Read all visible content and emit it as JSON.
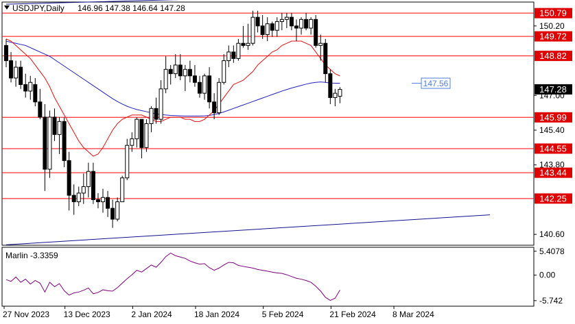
{
  "header": {
    "symbol": "USDJPY,Daily",
    "ohlc": "146.96 147.38 146.64 147.28"
  },
  "price_labels": [
    {
      "value": 150.79,
      "text": "150.79",
      "style": "red"
    },
    {
      "value": 150.2,
      "text": "150.20",
      "style": "plain"
    },
    {
      "value": 149.72,
      "text": "149.72",
      "style": "red"
    },
    {
      "value": 148.82,
      "text": "148.82",
      "style": "red"
    },
    {
      "value": 147.28,
      "text": "147.28",
      "style": "black"
    },
    {
      "value": 147.0,
      "text": "147.00",
      "style": "plain"
    },
    {
      "value": 145.99,
      "text": "145.99",
      "style": "red"
    },
    {
      "value": 145.4,
      "text": "145.40",
      "style": "plain"
    },
    {
      "value": 144.55,
      "text": "144.55",
      "style": "red"
    },
    {
      "value": 143.8,
      "text": "143.80",
      "style": "plain"
    },
    {
      "value": 143.44,
      "text": "143.44",
      "style": "red"
    },
    {
      "value": 142.25,
      "text": "142.25",
      "style": "red"
    },
    {
      "value": 140.6,
      "text": "140.60",
      "style": "plain"
    }
  ],
  "annotation": {
    "text": "147.56",
    "value": 147.56
  },
  "date_labels": [
    "27 Nov 2023",
    "13 Dec 2023",
    "2 Jan 2024",
    "18 Jan 2024",
    "5 Feb 2024",
    "21 Feb 2024",
    "8 Mar 2024"
  ],
  "oscillator": {
    "label": "Marlin -3.3359",
    "ticks": [
      {
        "value": 5.4078,
        "text": "5.4078"
      },
      {
        "value": 0.0,
        "text": "0.00"
      },
      {
        "value": -5.742,
        "text": "-5.742"
      }
    ]
  },
  "colors": {
    "bull": "#ffffff",
    "bear": "#000000",
    "level": "#ff0000",
    "ma_fast": "#e01010",
    "ma_slow": "#2020c0",
    "osc": "#800080",
    "label_red": "#e00000",
    "annot": "#4a7fe0"
  },
  "chart_data": {
    "type": "candlestick",
    "series_name": "USDJPY,Daily",
    "ylim": [
      140.1,
      151.3
    ],
    "horizontal_levels": [
      150.79,
      149.72,
      148.82,
      145.99,
      144.55,
      143.44,
      142.25
    ],
    "candles": [
      [
        149.3,
        149.6,
        148.3,
        148.6
      ],
      [
        148.6,
        149.0,
        147.6,
        147.8
      ],
      [
        147.8,
        148.6,
        147.4,
        148.3
      ],
      [
        148.3,
        148.6,
        147.3,
        147.5
      ],
      [
        147.5,
        148.0,
        146.9,
        147.2
      ],
      [
        147.2,
        147.9,
        146.8,
        147.6
      ],
      [
        147.5,
        147.8,
        146.5,
        146.7
      ],
      [
        146.7,
        147.3,
        145.9,
        146.0
      ],
      [
        146.0,
        146.6,
        142.6,
        143.6
      ],
      [
        143.6,
        146.3,
        143.2,
        146.0
      ],
      [
        146.0,
        146.4,
        144.9,
        145.2
      ],
      [
        145.2,
        146.0,
        144.3,
        145.8
      ],
      [
        145.8,
        146.0,
        143.7,
        144.0
      ],
      [
        144.0,
        144.4,
        141.7,
        142.4
      ],
      [
        142.4,
        142.9,
        141.5,
        142.1
      ],
      [
        142.1,
        142.8,
        141.9,
        142.5
      ],
      [
        142.5,
        143.4,
        142.0,
        142.8
      ],
      [
        142.8,
        143.9,
        142.3,
        143.5
      ],
      [
        143.5,
        143.9,
        142.0,
        142.2
      ],
      [
        142.2,
        142.5,
        141.8,
        142.1
      ],
      [
        142.1,
        142.7,
        141.6,
        142.3
      ],
      [
        142.3,
        142.6,
        141.4,
        141.8
      ],
      [
        141.8,
        142.2,
        140.9,
        141.3
      ],
      [
        141.3,
        142.3,
        141.2,
        142.1
      ],
      [
        142.1,
        143.3,
        142.1,
        143.2
      ],
      [
        143.2,
        145.0,
        143.1,
        144.7
      ],
      [
        144.7,
        145.3,
        144.4,
        145.0
      ],
      [
        145.0,
        146.0,
        144.6,
        145.9
      ],
      [
        145.9,
        145.9,
        144.1,
        144.6
      ],
      [
        144.6,
        145.9,
        144.4,
        145.7
      ],
      [
        145.7,
        146.5,
        145.3,
        146.4
      ],
      [
        146.4,
        146.9,
        145.7,
        145.9
      ],
      [
        145.9,
        147.7,
        145.7,
        147.3
      ],
      [
        147.3,
        148.8,
        147.1,
        148.2
      ],
      [
        148.2,
        148.4,
        147.5,
        148.0
      ],
      [
        148.0,
        148.9,
        147.8,
        148.4
      ],
      [
        148.4,
        148.9,
        147.7,
        147.9
      ],
      [
        147.9,
        148.4,
        147.2,
        148.2
      ],
      [
        148.2,
        148.6,
        147.6,
        147.9
      ],
      [
        147.9,
        148.4,
        147.4,
        147.6
      ],
      [
        147.6,
        147.9,
        146.9,
        147.1
      ],
      [
        147.1,
        148.0,
        146.8,
        147.9
      ],
      [
        147.9,
        148.3,
        146.4,
        146.7
      ],
      [
        146.7,
        147.1,
        145.9,
        146.2
      ],
      [
        146.2,
        147.8,
        146.1,
        147.6
      ],
      [
        147.6,
        148.9,
        147.5,
        148.6
      ],
      [
        148.6,
        149.3,
        148.3,
        149.0
      ],
      [
        149.0,
        149.3,
        148.5,
        148.7
      ],
      [
        148.7,
        149.6,
        148.6,
        149.4
      ],
      [
        149.4,
        150.2,
        149.2,
        149.3
      ],
      [
        149.3,
        150.3,
        149.1,
        149.4
      ],
      [
        149.4,
        150.9,
        149.3,
        150.6
      ],
      [
        150.6,
        150.9,
        149.9,
        150.2
      ],
      [
        150.2,
        150.7,
        149.6,
        149.8
      ],
      [
        149.8,
        150.6,
        149.5,
        150.3
      ],
      [
        150.3,
        150.4,
        149.7,
        150.0
      ],
      [
        150.0,
        150.6,
        149.7,
        150.4
      ],
      [
        150.4,
        150.8,
        150.0,
        150.5
      ],
      [
        150.5,
        150.8,
        150.1,
        150.6
      ],
      [
        150.6,
        150.8,
        150.0,
        150.2
      ],
      [
        150.2,
        150.5,
        149.5,
        150.1
      ],
      [
        150.1,
        150.6,
        149.8,
        150.5
      ],
      [
        150.5,
        150.8,
        150.0,
        150.1
      ],
      [
        150.1,
        150.6,
        149.8,
        150.5
      ],
      [
        150.5,
        150.7,
        149.2,
        149.3
      ],
      [
        149.3,
        149.8,
        148.6,
        149.4
      ],
      [
        149.4,
        149.6,
        147.6,
        148.0
      ],
      [
        148.0,
        148.2,
        146.6,
        146.9
      ],
      [
        146.9,
        147.3,
        146.5,
        147.1
      ],
      [
        146.96,
        147.38,
        146.64,
        147.28
      ]
    ],
    "red_ma": [
      149.6,
      149.5,
      149.3,
      149.1,
      148.9,
      148.7,
      148.4,
      148.1,
      147.8,
      147.4,
      146.9,
      146.5,
      146.1,
      145.7,
      145.3,
      144.9,
      144.6,
      144.4,
      144.2,
      144.3,
      144.6,
      145.0,
      145.4,
      145.7,
      145.9,
      146.0,
      146.1,
      146.1,
      146.1,
      146.0,
      145.9,
      145.8,
      145.8,
      145.9,
      146.0,
      146.0,
      146.0,
      145.9,
      145.9,
      145.8,
      145.8,
      145.9,
      146.1,
      146.3,
      146.6,
      146.9,
      147.2,
      147.5,
      147.6,
      147.7,
      147.9,
      148.1,
      148.4,
      148.6,
      148.8,
      149.0,
      149.1,
      149.3,
      149.4,
      149.5,
      149.5,
      149.5,
      149.4,
      149.3,
      149.0,
      148.7,
      148.4,
      148.2,
      148.0,
      147.9
    ],
    "blue_ma": [
      149.5,
      149.45,
      149.4,
      149.35,
      149.3,
      149.2,
      149.1,
      149.0,
      148.9,
      148.8,
      148.65,
      148.5,
      148.35,
      148.2,
      148.05,
      147.9,
      147.75,
      147.6,
      147.45,
      147.3,
      147.15,
      147.0,
      146.85,
      146.72,
      146.6,
      146.5,
      146.42,
      146.35,
      146.3,
      146.25,
      146.2,
      146.15,
      146.12,
      146.1,
      146.08,
      146.07,
      146.06,
      146.05,
      146.05,
      146.05,
      146.05,
      146.06,
      146.08,
      146.12,
      146.17,
      146.24,
      146.32,
      146.4,
      146.48,
      146.56,
      146.64,
      146.72,
      146.8,
      146.88,
      146.96,
      147.04,
      147.12,
      147.2,
      147.27,
      147.34,
      147.4,
      147.46,
      147.52,
      147.57,
      147.6,
      147.62,
      147.6,
      147.57,
      147.56,
      147.56
    ],
    "trendlines": [
      {
        "points": [
          [
            0,
            151.2
          ],
          [
            51,
            151.5
          ]
        ]
      },
      {
        "points": [
          [
            0,
            140.12
          ],
          [
            100,
            141.5
          ]
        ]
      }
    ],
    "oscillator_values": [
      -1.0,
      -1.4,
      -0.4,
      -1.6,
      -0.9,
      -2.0,
      -1.2,
      -1.8,
      -3.8,
      -1.6,
      -2.6,
      -1.9,
      -3.5,
      -4.5,
      -4.0,
      -3.8,
      -3.4,
      -2.9,
      -4.2,
      -3.9,
      -3.3,
      -3.5,
      -3.6,
      -2.8,
      -1.8,
      -0.8,
      0.1,
      1.1,
      0.7,
      1.5,
      2.3,
      1.8,
      2.9,
      4.2,
      5.0,
      4.4,
      4.1,
      3.8,
      3.2,
      2.8,
      2.5,
      2.6,
      1.7,
      1.1,
      1.6,
      2.3,
      2.9,
      2.8,
      2.2,
      2.0,
      1.8,
      1.6,
      1.3,
      1.1,
      0.9,
      0.7,
      0.5,
      0.4,
      0.1,
      -0.3,
      -0.7,
      -0.9,
      -1.2,
      -1.6,
      -2.5,
      -3.6,
      -5.0,
      -5.7,
      -5.2,
      -3.34
    ],
    "oscillator_ylim": [
      -7.0,
      6.3
    ]
  }
}
